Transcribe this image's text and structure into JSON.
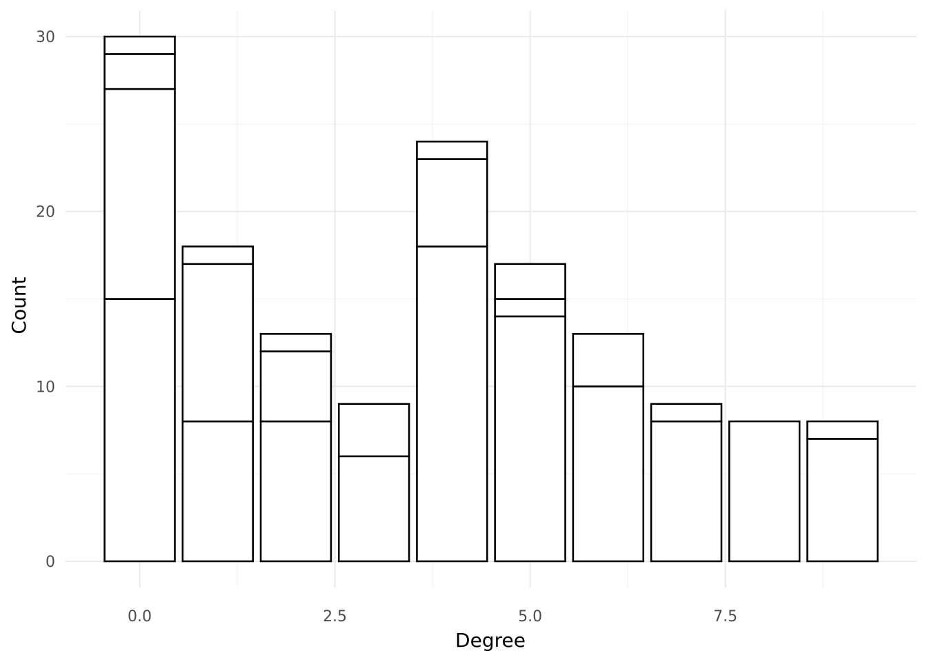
{
  "chart_data": {
    "type": "bar",
    "stacked": true,
    "title": "",
    "xlabel": "Degree",
    "ylabel": "Count",
    "x_ticks": [
      "0.0",
      "2.5",
      "5.0",
      "7.5"
    ],
    "y_ticks": [
      "0",
      "10",
      "20",
      "30"
    ],
    "xlim": [
      -0.95,
      9.95
    ],
    "ylim": [
      -1.5,
      31.5
    ],
    "grid": true,
    "legend": "none",
    "bar_fill": "#ffffff",
    "bar_outline": "#000000",
    "categories": [
      0,
      1,
      2,
      3,
      4,
      5,
      6,
      7,
      8,
      9
    ],
    "stacks": [
      [
        15,
        12,
        2,
        1
      ],
      [
        8,
        9,
        1
      ],
      [
        8,
        4,
        1
      ],
      [
        6,
        3
      ],
      [
        18,
        5,
        1
      ],
      [
        14,
        1,
        2
      ],
      [
        10,
        3
      ],
      [
        8,
        1
      ],
      [
        8
      ],
      [
        7,
        1
      ]
    ],
    "totals": [
      30,
      18,
      13,
      9,
      24,
      17,
      13,
      9,
      8,
      8
    ]
  }
}
